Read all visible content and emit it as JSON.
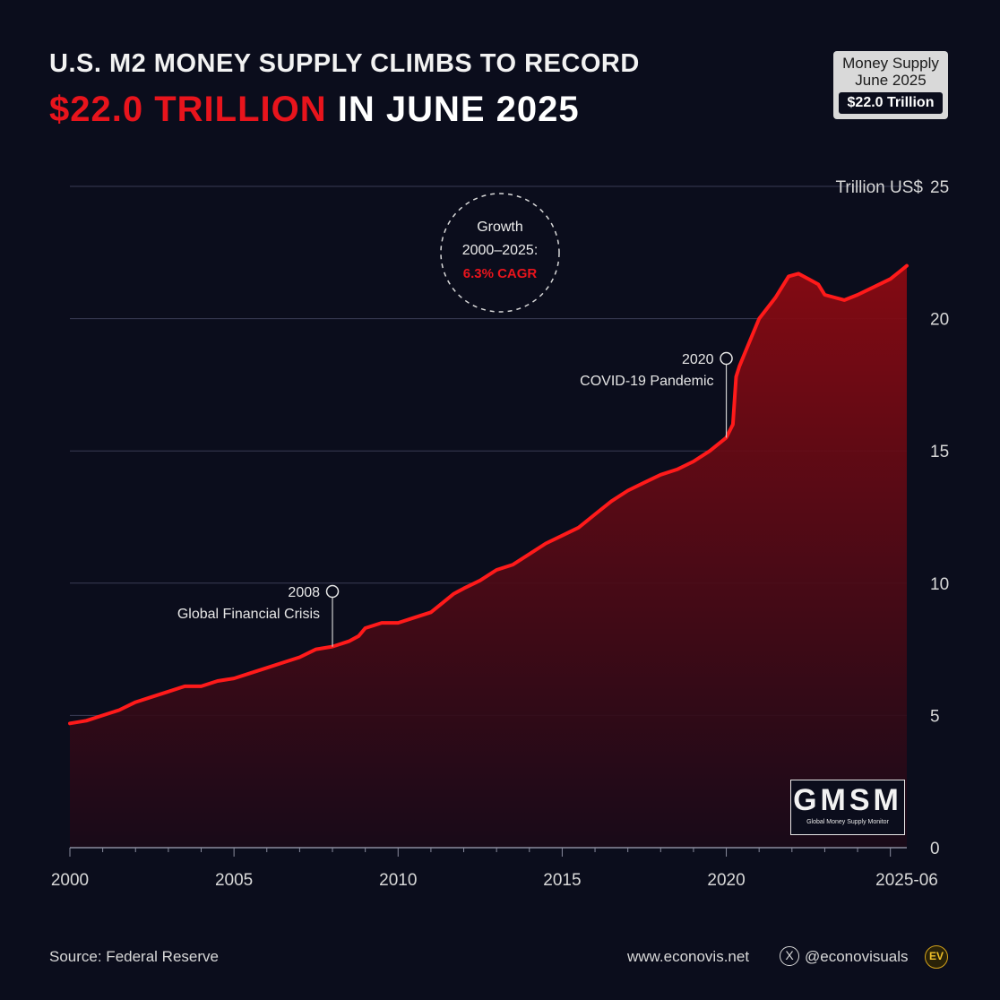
{
  "title": {
    "line1": "U.S. M2 MONEY SUPPLY CLIMBS TO RECORD",
    "line2_accent": "$22.0 TRILLION",
    "line2_rest": " IN JUNE 2025"
  },
  "badge": {
    "line1": "Money Supply",
    "line2": "June 2025",
    "value": "$22.0 Trillion"
  },
  "callout": {
    "line1": "Growth",
    "line2": "2000–2025:",
    "line3": "6.3% CAGR"
  },
  "annotations": [
    {
      "year_label": "2008",
      "text": "Global Financial Crisis",
      "x": 2008.0,
      "y": 7.6
    },
    {
      "year_label": "2020",
      "text": "COVID-19 Pandemic",
      "x": 2020.0,
      "y": 15.5
    }
  ],
  "watermark": {
    "big": "GMSM",
    "small": "Global Money Supply Monitor"
  },
  "footer": {
    "source": "Source: Federal Reserve",
    "website": "www.econovis.net",
    "x_glyph": "X",
    "handle": "@econovisuals",
    "logo": "EV"
  },
  "colors": {
    "background": "#0b0d1c",
    "line": "#ff1a1a",
    "accent": "#e8141c"
  },
  "chart_data": {
    "type": "area",
    "title": "U.S. M2 MONEY SUPPLY CLIMBS TO RECORD $22.0 TRILLION IN JUNE 2025",
    "ylabel": "Trillion US$",
    "xlabel": "",
    "xlim": [
      2000,
      2025.5
    ],
    "ylim": [
      0,
      25
    ],
    "x_ticks": [
      2000,
      2005,
      2010,
      2015,
      2020,
      2025.5
    ],
    "x_tick_labels": [
      "2000",
      "2005",
      "2010",
      "2015",
      "2020",
      "2025-06"
    ],
    "y_ticks": [
      0,
      5,
      10,
      15,
      20,
      25
    ],
    "y_tick_labels": [
      "0",
      "5",
      "10",
      "15",
      "20",
      "25"
    ],
    "y_unit_label": "Trillion US$",
    "grid": true,
    "series": [
      {
        "x": [
          2000.0,
          2000.5,
          2001.0,
          2001.5,
          2002.0,
          2002.5,
          2003.0,
          2003.5,
          2004.0,
          2004.5,
          2005.0,
          2005.5,
          2006.0,
          2006.5,
          2007.0,
          2007.5,
          2008.0,
          2008.5,
          2008.8,
          2009.0,
          2009.5,
          2010.0,
          2010.5,
          2011.0,
          2011.3,
          2011.7,
          2012.0,
          2012.5,
          2013.0,
          2013.5,
          2014.0,
          2014.5,
          2015.0,
          2015.5,
          2016.0,
          2016.5,
          2017.0,
          2017.5,
          2018.0,
          2018.5,
          2019.0,
          2019.5,
          2020.0,
          2020.2,
          2020.3,
          2020.4,
          2020.6,
          2021.0,
          2021.5,
          2021.9,
          2022.2,
          2022.5,
          2022.8,
          2023.0,
          2023.3,
          2023.6,
          2024.0,
          2024.5,
          2025.0,
          2025.3,
          2025.5
        ],
        "values": [
          4.7,
          4.8,
          5.0,
          5.2,
          5.5,
          5.7,
          5.9,
          6.1,
          6.1,
          6.3,
          6.4,
          6.6,
          6.8,
          7.0,
          7.2,
          7.5,
          7.6,
          7.8,
          8.0,
          8.3,
          8.5,
          8.5,
          8.7,
          8.9,
          9.2,
          9.6,
          9.8,
          10.1,
          10.5,
          10.7,
          11.1,
          11.5,
          11.8,
          12.1,
          12.6,
          13.1,
          13.5,
          13.8,
          14.1,
          14.3,
          14.6,
          15.0,
          15.5,
          16.0,
          17.8,
          18.2,
          18.8,
          20.0,
          20.8,
          21.6,
          21.7,
          21.5,
          21.3,
          20.9,
          20.8,
          20.7,
          20.9,
          21.2,
          21.5,
          21.8,
          22.0
        ]
      }
    ]
  }
}
